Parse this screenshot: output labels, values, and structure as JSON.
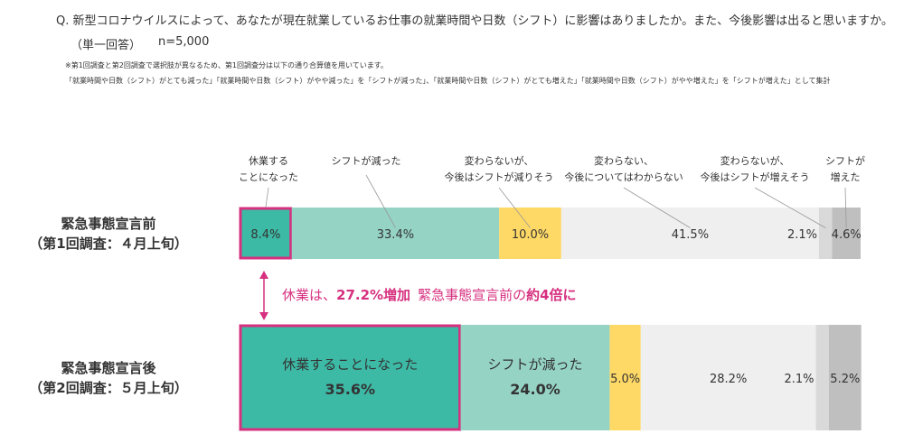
{
  "header": {
    "question": "Q. 新型コロナウイルスによって、あなたが現在就業しているお仕事の就業時間や日数（シフト）に影響はありましたか。また、今後影響は出ると思いますか。",
    "answer_type": "（単一回答）",
    "sample": "n=5,000",
    "notes": [
      "※第1回調査と第2回調査で選択肢が異なるため、第1回調査分は以下の通り合算値を用いています。",
      "「就業時間や日数（シフト）がとても減った」「就業時間や日数（シフト）がやや減った」を「シフトが減った」、「就業時間や日数（シフト）がとても増えた」「就業時間や日数（シフト）がやや増えた」を「シフトが増えた」として集計"
    ]
  },
  "chart_data": {
    "type": "stacked-bar-horizontal",
    "categories": [
      "緊急事態宣言前\n（第1回調査：４月上旬）",
      "緊急事態宣言後\n（第2回調査：５月上旬）"
    ],
    "xlim": [
      0,
      100
    ],
    "series": [
      {
        "name": "休業する\nことになった",
        "color": "#3dbaa6",
        "highlight": true,
        "values": [
          8.4,
          35.6
        ],
        "value_labels": [
          "8.4%",
          "35.6%"
        ],
        "inline_labels": [
          null,
          "休業することになった"
        ]
      },
      {
        "name": "シフトが減った",
        "color": "#95d3c5",
        "values": [
          33.4,
          24.0
        ],
        "value_labels": [
          "33.4%",
          "24.0%"
        ],
        "inline_labels": [
          null,
          "シフトが減った"
        ]
      },
      {
        "name": "変わらないが、\n今後はシフトが減りそう",
        "color": "#ffd966",
        "values": [
          10.0,
          5.0
        ],
        "value_labels": [
          "10.0%",
          "5.0%"
        ]
      },
      {
        "name": "変わらない、\n今後についてはわからない",
        "color": "#efefef",
        "values": [
          41.5,
          28.2
        ],
        "value_labels": [
          "41.5%",
          "28.2%"
        ]
      },
      {
        "name": "変わらないが、\n今後はシフトが増えそう",
        "color": "#d9d9d9",
        "values": [
          2.1,
          2.1
        ],
        "value_labels": [
          "2.1%",
          "2.1%"
        ]
      },
      {
        "name": "シフトが\n増えた",
        "color": "#bfbfbf",
        "values": [
          4.6,
          5.2
        ],
        "value_labels": [
          "4.6%",
          "5.2%"
        ]
      }
    ],
    "annotation": [
      {
        "text": "休業は、",
        "bold": false
      },
      {
        "text": "27.2%増加",
        "bold": true
      },
      {
        "text": "緊急事態宣言前の",
        "bold": false
      },
      {
        "text": "約4倍に",
        "bold": true
      }
    ],
    "annotation_color": "#d6307f"
  }
}
